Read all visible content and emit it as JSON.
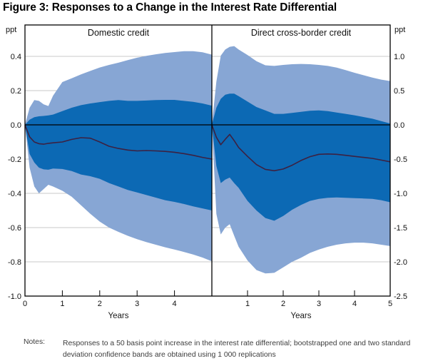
{
  "notes": {
    "label": "Notes:",
    "text": "Responses to a 50 basis point increase in the interest rate differential; bootstrapped one and two standard deviation confidence bands are obtained using 1 000 replications"
  },
  "colors": {
    "band_outer": "#87a6d4",
    "band_inner": "#0c69b4",
    "response_line": "#3c2142",
    "grid": "#c9c9c9",
    "axis": "#000000"
  },
  "chart_data": {
    "type": "area",
    "title": "Figure 3: Responses to a Change in the Interest Rate Differential",
    "xlabel": "Years",
    "unit_left": "ppt",
    "unit_right": "ppt",
    "x_range": [
      0,
      5
    ],
    "grid": "horizontal",
    "y_axis_left": {
      "label": "ppt",
      "min": -1.0,
      "max": 0.583,
      "ticks": [
        0.4,
        0.2,
        0.0,
        -0.2,
        -0.4,
        -0.6,
        -0.8,
        -1.0
      ],
      "tick_labels": [
        "0.4",
        "0.2",
        "0.0",
        "-0.2",
        "-0.4",
        "-0.6",
        "-0.8",
        "-1.0"
      ]
    },
    "y_axis_right": {
      "label": "ppt",
      "min": -2.5,
      "max": 1.458,
      "ticks": [
        1.0,
        0.5,
        0.0,
        -0.5,
        -1.0,
        -1.5,
        -2.0,
        -2.5
      ],
      "tick_labels": [
        "1.0",
        "0.5",
        "0.0",
        "-0.5",
        "-1.0",
        "-1.5",
        "-2.0",
        "-2.5"
      ]
    },
    "panels": [
      {
        "title": "Domestic credit",
        "axis": "left",
        "x_ticks": [
          0,
          1,
          2,
          3,
          4
        ],
        "x_tick_labels": [
          "0",
          "1",
          "2",
          "3",
          "4"
        ],
        "x": [
          0,
          0.125,
          0.25,
          0.375,
          0.5,
          0.625,
          0.75,
          1,
          1.25,
          1.5,
          1.75,
          2,
          2.25,
          2.5,
          2.75,
          3,
          3.25,
          3.5,
          3.75,
          4,
          4.25,
          4.5,
          4.75,
          5
        ],
        "response": [
          0,
          -0.07,
          -0.1,
          -0.11,
          -0.113,
          -0.108,
          -0.105,
          -0.1,
          -0.085,
          -0.075,
          -0.078,
          -0.1,
          -0.125,
          -0.138,
          -0.147,
          -0.152,
          -0.15,
          -0.152,
          -0.155,
          -0.16,
          -0.168,
          -0.178,
          -0.19,
          -0.2
        ],
        "band_1sd": {
          "upper": [
            0,
            0.03,
            0.045,
            0.05,
            0.052,
            0.055,
            0.06,
            0.08,
            0.1,
            0.115,
            0.125,
            0.133,
            0.14,
            0.145,
            0.14,
            0.14,
            0.142,
            0.145,
            0.146,
            0.146,
            0.14,
            0.134,
            0.125,
            0.112
          ],
          "lower": [
            0,
            -0.17,
            -0.22,
            -0.25,
            -0.26,
            -0.262,
            -0.255,
            -0.258,
            -0.27,
            -0.29,
            -0.3,
            -0.315,
            -0.34,
            -0.36,
            -0.38,
            -0.395,
            -0.41,
            -0.425,
            -0.44,
            -0.45,
            -0.462,
            -0.476,
            -0.488,
            -0.5
          ]
        },
        "band_2sd": {
          "upper": [
            0,
            0.1,
            0.145,
            0.14,
            0.12,
            0.11,
            0.17,
            0.25,
            0.272,
            0.295,
            0.315,
            0.335,
            0.35,
            0.363,
            0.378,
            0.392,
            0.403,
            0.412,
            0.42,
            0.425,
            0.43,
            0.43,
            0.424,
            0.41
          ],
          "lower": [
            0,
            -0.25,
            -0.36,
            -0.4,
            -0.375,
            -0.35,
            -0.36,
            -0.385,
            -0.42,
            -0.47,
            -0.52,
            -0.565,
            -0.6,
            -0.625,
            -0.648,
            -0.668,
            -0.685,
            -0.7,
            -0.715,
            -0.728,
            -0.742,
            -0.757,
            -0.775,
            -0.797
          ]
        }
      },
      {
        "title": "Direct cross-border credit",
        "axis": "right",
        "x_ticks": [
          1,
          2,
          3,
          4,
          5
        ],
        "x_tick_labels": [
          "1",
          "2",
          "3",
          "4",
          "5"
        ],
        "x": [
          0,
          0.125,
          0.25,
          0.375,
          0.5,
          0.625,
          0.75,
          1,
          1.25,
          1.5,
          1.75,
          2,
          2.25,
          2.5,
          2.75,
          3,
          3.25,
          3.5,
          3.75,
          4,
          4.25,
          4.5,
          4.75,
          5
        ],
        "response": [
          0,
          -0.18,
          -0.29,
          -0.21,
          -0.14,
          -0.23,
          -0.33,
          -0.46,
          -0.58,
          -0.65,
          -0.67,
          -0.645,
          -0.59,
          -0.52,
          -0.465,
          -0.43,
          -0.425,
          -0.43,
          -0.445,
          -0.46,
          -0.475,
          -0.49,
          -0.515,
          -0.54
        ],
        "band_1sd": {
          "upper": [
            0,
            0.25,
            0.38,
            0.44,
            0.455,
            0.455,
            0.42,
            0.34,
            0.26,
            0.21,
            0.16,
            0.16,
            0.175,
            0.19,
            0.205,
            0.21,
            0.2,
            0.18,
            0.16,
            0.14,
            0.115,
            0.09,
            0.055,
            0.02
          ],
          "lower": [
            0,
            -0.6,
            -0.85,
            -0.8,
            -0.77,
            -0.85,
            -0.92,
            -1.11,
            -1.25,
            -1.36,
            -1.4,
            -1.33,
            -1.24,
            -1.17,
            -1.11,
            -1.08,
            -1.065,
            -1.06,
            -1.065,
            -1.07,
            -1.075,
            -1.08,
            -1.1,
            -1.13
          ]
        },
        "band_2sd": {
          "upper": [
            0,
            0.63,
            1.01,
            1.1,
            1.14,
            1.15,
            1.1,
            1.02,
            0.93,
            0.87,
            0.86,
            0.875,
            0.885,
            0.89,
            0.885,
            0.875,
            0.86,
            0.835,
            0.8,
            0.76,
            0.725,
            0.69,
            0.66,
            0.64
          ],
          "lower": [
            0,
            -1.3,
            -1.6,
            -1.5,
            -1.45,
            -1.62,
            -1.78,
            -1.98,
            -2.12,
            -2.17,
            -2.16,
            -2.08,
            -2.0,
            -1.94,
            -1.87,
            -1.82,
            -1.78,
            -1.75,
            -1.73,
            -1.72,
            -1.72,
            -1.73,
            -1.75,
            -1.77
          ]
        }
      }
    ]
  }
}
